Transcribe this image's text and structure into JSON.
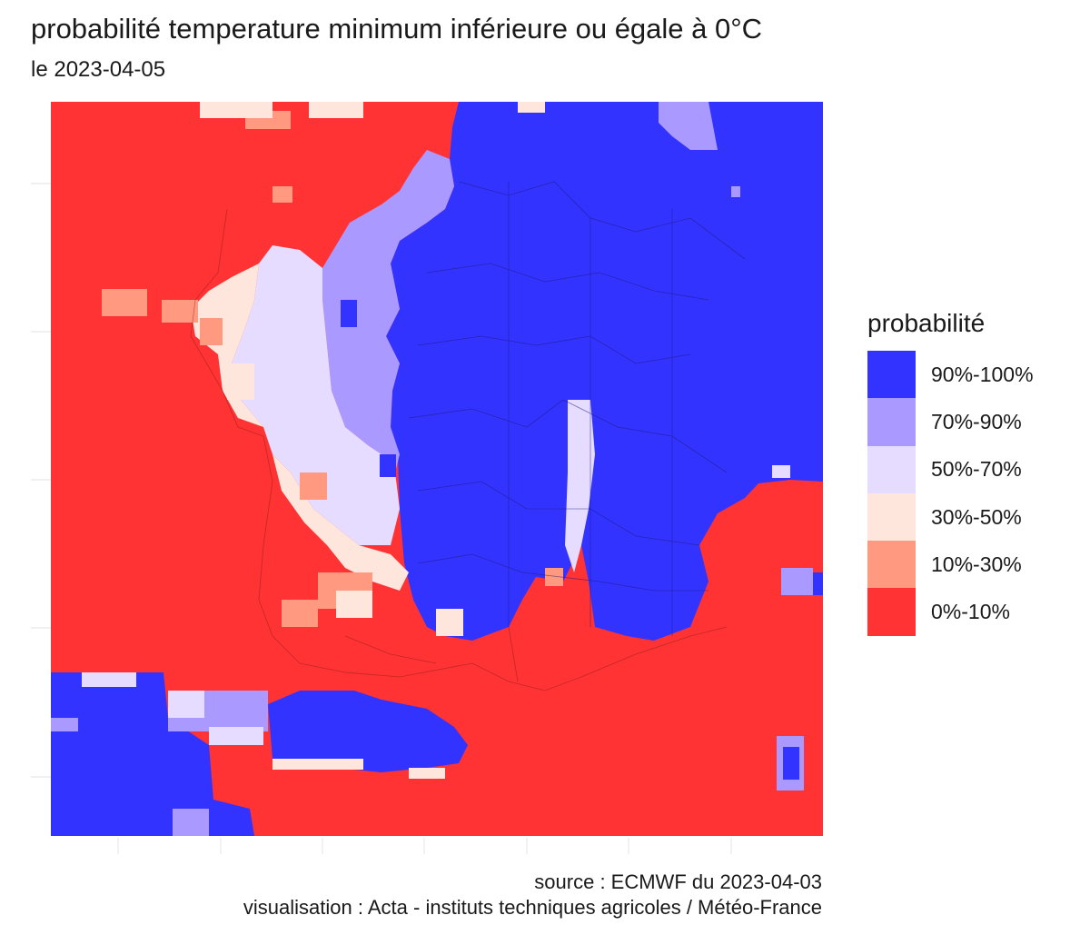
{
  "title": "probabilité temperature minimum inférieure ou égale à 0°C",
  "subtitle": "le 2023-04-05",
  "legend": {
    "title": "probabilité",
    "items": [
      {
        "label": "90%-100%",
        "color": "#3333ff"
      },
      {
        "label": "70%-90%",
        "color": "#aa99ff"
      },
      {
        "label": "50%-70%",
        "color": "#e6dcff"
      },
      {
        "label": "30%-50%",
        "color": "#ffe6dc"
      },
      {
        "label": "10%-30%",
        "color": "#ff9a80"
      },
      {
        "label": "0%-10%",
        "color": "#ff3333"
      }
    ]
  },
  "caption": {
    "source": "source : ECMWF du 2023-04-03",
    "credit": "visualisation : Acta - instituts techniques agricoles / Météo-France"
  }
}
